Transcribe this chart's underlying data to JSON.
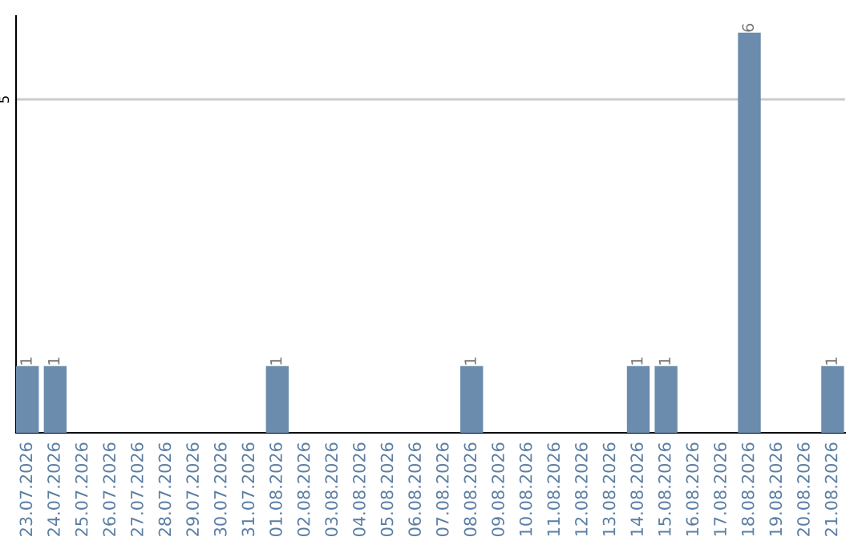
{
  "chart_data": {
    "type": "bar",
    "categories": [
      "23.07.2026",
      "24.07.2026",
      "25.07.2026",
      "26.07.2026",
      "27.07.2026",
      "28.07.2026",
      "29.07.2026",
      "30.07.2026",
      "31.07.2026",
      "01.08.2026",
      "02.08.2026",
      "03.08.2026",
      "04.08.2026",
      "05.08.2026",
      "06.08.2026",
      "07.08.2026",
      "08.08.2026",
      "09.08.2026",
      "10.08.2026",
      "11.08.2026",
      "12.08.2026",
      "13.08.2026",
      "14.08.2026",
      "15.08.2026",
      "16.08.2026",
      "17.08.2026",
      "18.08.2026",
      "19.08.2026",
      "20.08.2026",
      "21.08.2026"
    ],
    "values": [
      1,
      1,
      0,
      0,
      0,
      0,
      0,
      0,
      0,
      1,
      0,
      0,
      0,
      0,
      0,
      0,
      1,
      0,
      0,
      0,
      0,
      0,
      1,
      1,
      0,
      0,
      6,
      0,
      0,
      1
    ],
    "value_labels": [
      "1",
      "1",
      null,
      null,
      null,
      null,
      null,
      null,
      null,
      "1",
      null,
      null,
      null,
      null,
      null,
      null,
      "1",
      null,
      null,
      null,
      null,
      null,
      "1",
      "1",
      null,
      null,
      "6",
      null,
      null,
      "1"
    ],
    "color": "#6b8cac",
    "ylim": [
      0,
      6.25
    ],
    "yticks": [
      5
    ],
    "grid": "y",
    "legend": false
  }
}
